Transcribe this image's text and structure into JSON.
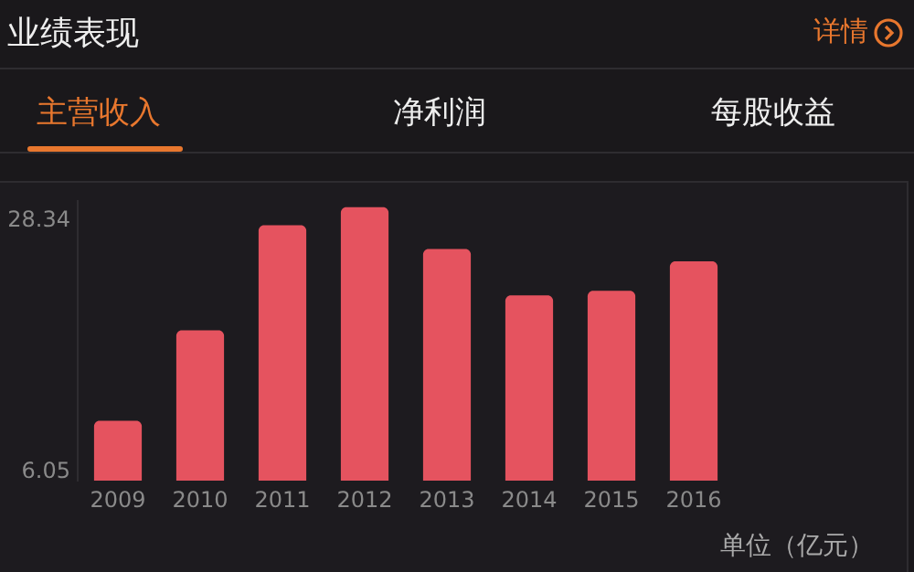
{
  "chart_data": {
    "type": "bar",
    "title": "业绩表现",
    "annotations": [
      "详情",
      "主营收入",
      "净利润",
      "每股收益",
      "单位（亿元）"
    ],
    "categories": [
      "2009",
      "2010",
      "2011",
      "2012",
      "2013",
      "2014",
      "2015",
      "2016"
    ],
    "values": [
      10.4,
      18.4,
      27.7,
      29.3,
      25.6,
      21.5,
      21.9,
      24.5
    ],
    "color": "#e5535f",
    "ylim": [
      5.1,
      30
    ],
    "yticks": [
      {
        "value": 6.05,
        "label": "6.05"
      },
      {
        "value": 28.34,
        "label": "28.34"
      }
    ],
    "grid": false
  }
}
